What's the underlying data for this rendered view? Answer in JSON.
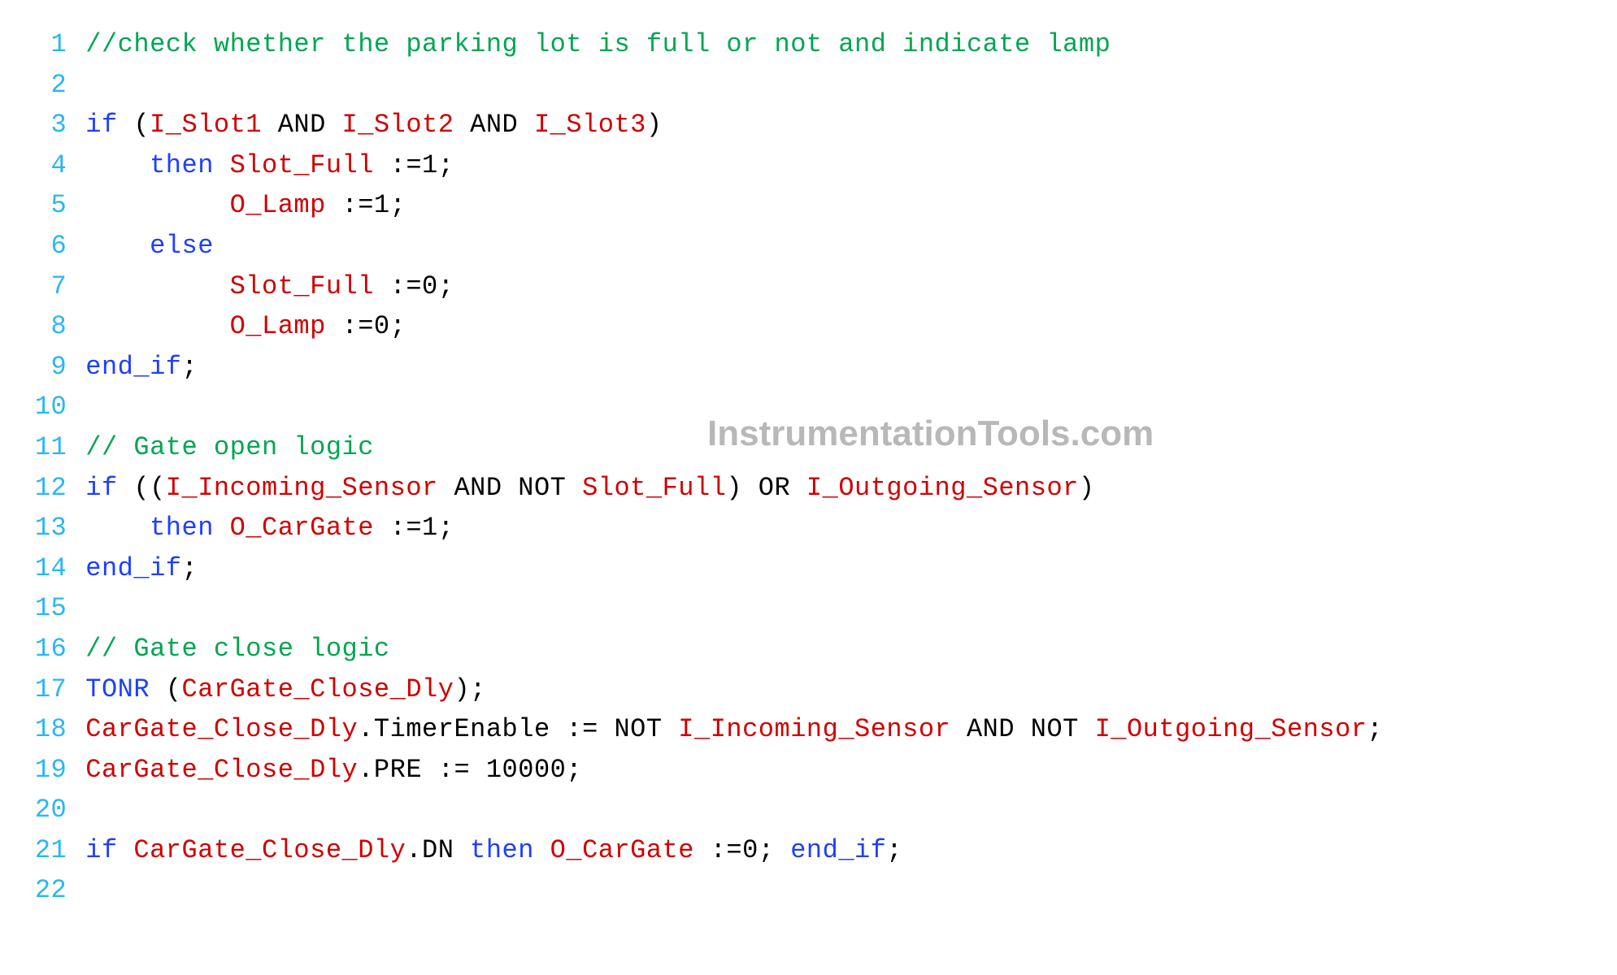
{
  "colors": {
    "lineNumber": "#29b6f6",
    "comment": "#00a651",
    "keyword": "#1e3fff",
    "identifier": "#d00000",
    "default": "#000000",
    "watermark": "#b8b8b8",
    "background": "#ffffff"
  },
  "typography": {
    "fontSizePx": 32,
    "lineHeight": 1.55,
    "fontFamily": "Consolas, 'Courier New', monospace"
  },
  "watermark": {
    "text": "InstrumentationTools.com",
    "fontSizePx": 44,
    "topPx": 500,
    "leftPx": 870
  },
  "code": [
    [
      {
        "t": "//check whether the parking lot is full or not and indicate lamp",
        "c": "comment"
      }
    ],
    [],
    [
      {
        "t": "if",
        "c": "keyword"
      },
      {
        "t": " ("
      },
      {
        "t": "I_Slot1",
        "c": "identifier"
      },
      {
        "t": " AND "
      },
      {
        "t": "I_Slot2",
        "c": "identifier"
      },
      {
        "t": " AND "
      },
      {
        "t": "I_Slot3",
        "c": "identifier"
      },
      {
        "t": ")"
      }
    ],
    [
      {
        "t": "    "
      },
      {
        "t": "then",
        "c": "keyword"
      },
      {
        "t": " "
      },
      {
        "t": "Slot_Full",
        "c": "identifier"
      },
      {
        "t": " :=1;"
      }
    ],
    [
      {
        "t": "         "
      },
      {
        "t": "O_Lamp",
        "c": "identifier"
      },
      {
        "t": " :=1;"
      }
    ],
    [
      {
        "t": "    "
      },
      {
        "t": "else",
        "c": "keyword"
      }
    ],
    [
      {
        "t": "         "
      },
      {
        "t": "Slot_Full",
        "c": "identifier"
      },
      {
        "t": " :=0;"
      }
    ],
    [
      {
        "t": "         "
      },
      {
        "t": "O_Lamp",
        "c": "identifier"
      },
      {
        "t": " :=0;"
      }
    ],
    [
      {
        "t": "end_if",
        "c": "keyword"
      },
      {
        "t": ";"
      }
    ],
    [],
    [
      {
        "t": "// Gate open logic",
        "c": "comment"
      }
    ],
    [
      {
        "t": "if",
        "c": "keyword"
      },
      {
        "t": " (("
      },
      {
        "t": "I_Incoming_Sensor",
        "c": "identifier"
      },
      {
        "t": " AND NOT "
      },
      {
        "t": "Slot_Full",
        "c": "identifier"
      },
      {
        "t": ") OR "
      },
      {
        "t": "I_Outgoing_Sensor",
        "c": "identifier"
      },
      {
        "t": ")"
      }
    ],
    [
      {
        "t": "    "
      },
      {
        "t": "then",
        "c": "keyword"
      },
      {
        "t": " "
      },
      {
        "t": "O_CarGate",
        "c": "identifier"
      },
      {
        "t": " :=1;"
      }
    ],
    [
      {
        "t": "end_if",
        "c": "keyword"
      },
      {
        "t": ";"
      }
    ],
    [],
    [
      {
        "t": "// Gate close logic",
        "c": "comment"
      }
    ],
    [
      {
        "t": "TONR",
        "c": "keyword"
      },
      {
        "t": " ("
      },
      {
        "t": "CarGate_Close_Dly",
        "c": "identifier"
      },
      {
        "t": ");"
      }
    ],
    [
      {
        "t": "CarGate_Close_Dly",
        "c": "identifier"
      },
      {
        "t": ".TimerEnable := NOT "
      },
      {
        "t": "I_Incoming_Sensor",
        "c": "identifier"
      },
      {
        "t": " AND NOT "
      },
      {
        "t": "I_Outgoing_Sensor",
        "c": "identifier"
      },
      {
        "t": ";"
      }
    ],
    [
      {
        "t": "CarGate_Close_Dly",
        "c": "identifier"
      },
      {
        "t": ".PRE := 10000;"
      }
    ],
    [],
    [
      {
        "t": "if",
        "c": "keyword"
      },
      {
        "t": " "
      },
      {
        "t": "CarGate_Close_Dly",
        "c": "identifier"
      },
      {
        "t": ".DN "
      },
      {
        "t": "then",
        "c": "keyword"
      },
      {
        "t": " "
      },
      {
        "t": "O_CarGate",
        "c": "identifier"
      },
      {
        "t": " :=0; "
      },
      {
        "t": "end_if",
        "c": "keyword"
      },
      {
        "t": ";"
      }
    ],
    []
  ]
}
